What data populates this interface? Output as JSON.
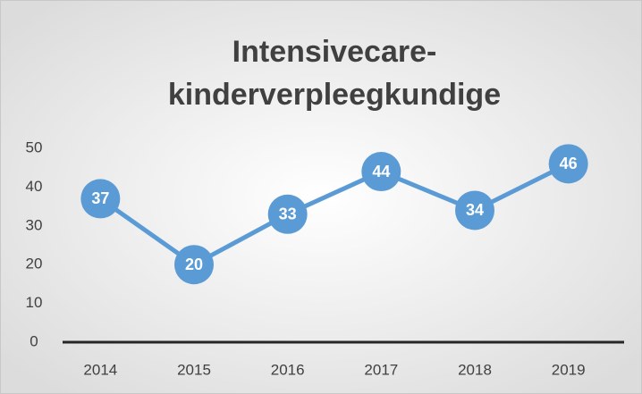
{
  "chart_data": {
    "type": "line",
    "title": [
      "Intensivecare-",
      "kinderverpleegkundige"
    ],
    "categories": [
      "2014",
      "2015",
      "2016",
      "2017",
      "2018",
      "2019"
    ],
    "values": [
      37,
      20,
      33,
      44,
      34,
      46
    ],
    "color": "#5b9bd5",
    "ylim": [
      0,
      50
    ],
    "yticks": [
      0,
      10,
      20,
      30,
      40,
      50
    ],
    "grid": false
  }
}
